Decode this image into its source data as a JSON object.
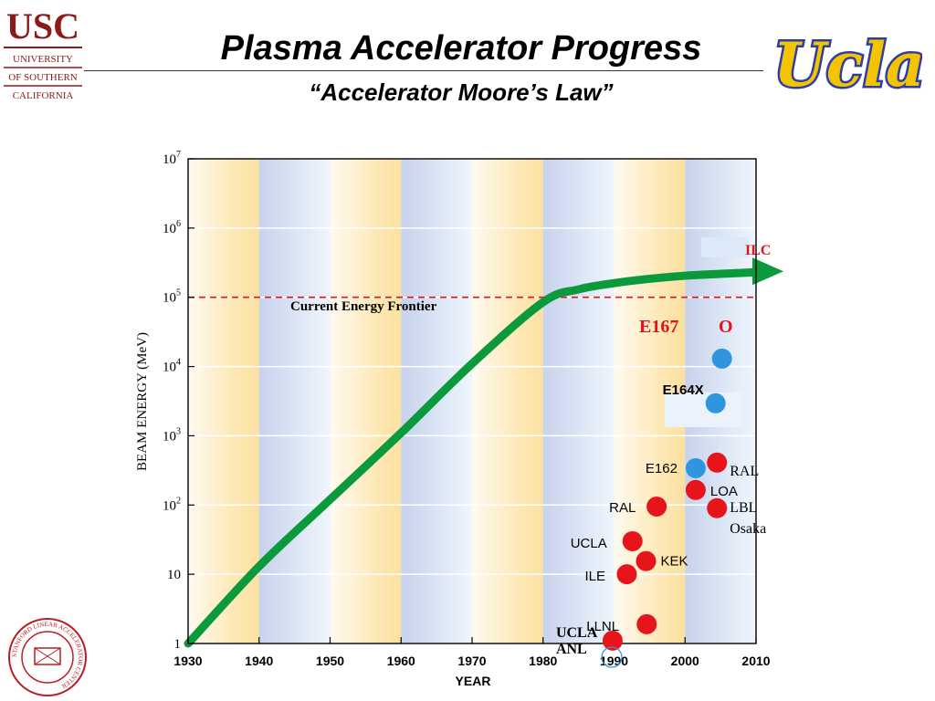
{
  "slide": {
    "title": "Plasma Accelerator Progress",
    "subtitle": "“Accelerator Moore’s Law”"
  },
  "logos": {
    "usc_main": "USC",
    "usc_line1": "UNIVERSITY",
    "usc_line2": "OF SOUTHERN",
    "usc_line3": "CALIFORNIA",
    "ucla": "Ucla",
    "slac_seal_text": "STANFORD LINEAR ACCELERATOR CENTER"
  },
  "colors": {
    "accent_red": "#e8141c",
    "accent_blue": "#2e95de",
    "trend_green": "#0a9a3c",
    "frontier_red": "#e0141c",
    "band_gold": "#fbe3a6",
    "band_blue": "#c9d4ee",
    "ucla_blue": "#2d3ea8",
    "ucla_gold": "#f5c400",
    "usc_red": "#8b1a1a"
  },
  "chart_data": {
    "type": "scatter",
    "xlabel": "YEAR",
    "ylabel": "BEAM ENERGY (MeV)",
    "x_range": [
      1930,
      2010
    ],
    "y_range": [
      1,
      10000000
    ],
    "y_scale": "log",
    "x_ticks": [
      "1930",
      "1940",
      "1950",
      "1960",
      "1970",
      "1980",
      "1990",
      "2000",
      "2010"
    ],
    "y_ticks": [
      {
        "value": 1,
        "base": "1",
        "exp": ""
      },
      {
        "value": 10,
        "base": "10",
        "exp": ""
      },
      {
        "value": 100,
        "base": "10",
        "exp": "2"
      },
      {
        "value": 1000,
        "base": "10",
        "exp": "3"
      },
      {
        "value": 10000,
        "base": "10",
        "exp": "4"
      },
      {
        "value": 100000,
        "base": "10",
        "exp": "5"
      },
      {
        "value": 1000000,
        "base": "10",
        "exp": "6"
      },
      {
        "value": 10000000,
        "base": "10",
        "exp": "7"
      }
    ],
    "frontier": {
      "label": "Current Energy Frontier",
      "y": 100000
    },
    "trend": [
      {
        "x": 1930,
        "y": 1
      },
      {
        "x": 1940,
        "y": 13
      },
      {
        "x": 1950,
        "y": 120
      },
      {
        "x": 1960,
        "y": 1100
      },
      {
        "x": 1970,
        "y": 11000
      },
      {
        "x": 1980,
        "y": 85000
      },
      {
        "x": 1985,
        "y": 130000
      },
      {
        "x": 1990,
        "y": 160000
      },
      {
        "x": 1995,
        "y": 185000
      },
      {
        "x": 2000,
        "y": 205000
      },
      {
        "x": 2005,
        "y": 218000
      },
      {
        "x": 2010,
        "y": 230000
      }
    ],
    "series": [
      {
        "color": "red",
        "points": [
          {
            "label": "UCLA ANL",
            "x": 1989.8,
            "y": 1.1
          },
          {
            "label": "LLNL",
            "x": 1994.6,
            "y": 1.9
          },
          {
            "label": "ILE",
            "x": 1991.8,
            "y": 10
          },
          {
            "label": "KEK",
            "x": 1994.5,
            "y": 15.5
          },
          {
            "label": "UCLA",
            "x": 1992.6,
            "y": 30
          },
          {
            "label": "RAL",
            "x": 1996.0,
            "y": 95
          },
          {
            "label": "LOA",
            "x": 2001.5,
            "y": 165
          },
          {
            "label": "RAL",
            "x": 2004.5,
            "y": 410
          },
          {
            "label": "LBL Osaka",
            "x": 2004.5,
            "y": 90
          }
        ]
      },
      {
        "color": "blue",
        "points": [
          {
            "label": "E162",
            "x": 2001.5,
            "y": 340
          },
          {
            "label": "E164X",
            "x": 2004.3,
            "y": 2950
          },
          {
            "label": "E167",
            "x": 2005.2,
            "y": 13000
          }
        ]
      }
    ],
    "callouts": {
      "ilc": "ILC",
      "e167": "E167",
      "o_mark": "O"
    }
  }
}
